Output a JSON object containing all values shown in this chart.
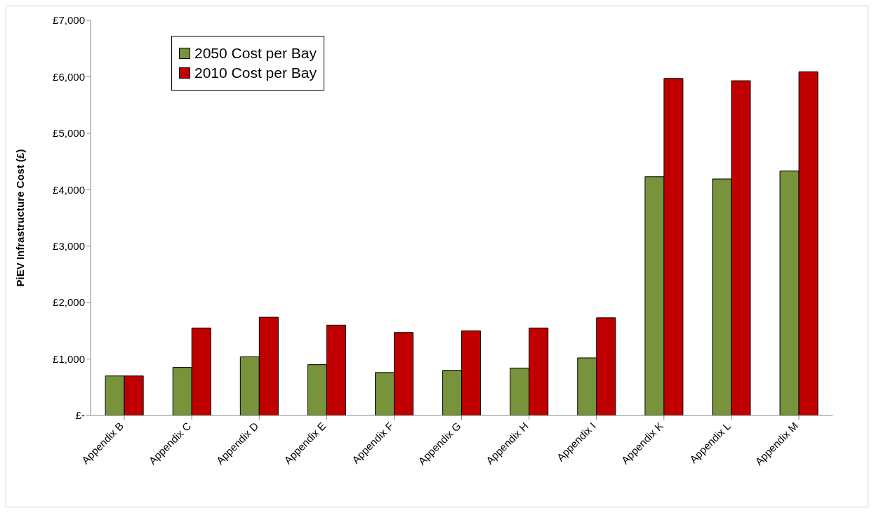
{
  "chart_data": {
    "type": "bar",
    "ylabel": "PiEV Infrastructure Cost (£)",
    "categories": [
      "Appendix B",
      "Appendix C",
      "Appendix D",
      "Appendix E",
      "Appendix F",
      "Appendix G",
      "Appendix H",
      "Appendix I",
      "Appendix K",
      "Appendix L",
      "Appendix M"
    ],
    "series": [
      {
        "name": "2050 Cost per Bay",
        "color": "#77933c",
        "values": [
          700,
          850,
          1040,
          900,
          760,
          800,
          840,
          1020,
          4230,
          4190,
          4330
        ]
      },
      {
        "name": "2010 Cost per Bay",
        "color": "#c00000",
        "values": [
          700,
          1550,
          1740,
          1600,
          1470,
          1500,
          1550,
          1730,
          5970,
          5930,
          6090
        ]
      }
    ],
    "ylim": [
      0,
      7000
    ],
    "yticks": [
      {
        "value": 0,
        "label": "£-"
      },
      {
        "value": 1000,
        "label": "£1,000"
      },
      {
        "value": 2000,
        "label": "£2,000"
      },
      {
        "value": 3000,
        "label": "£3,000"
      },
      {
        "value": 4000,
        "label": "£4,000"
      },
      {
        "value": 5000,
        "label": "£5,000"
      },
      {
        "value": 6000,
        "label": "£6,000"
      },
      {
        "value": 7000,
        "label": "£7,000"
      }
    ],
    "grid": false,
    "legend": "top left"
  }
}
